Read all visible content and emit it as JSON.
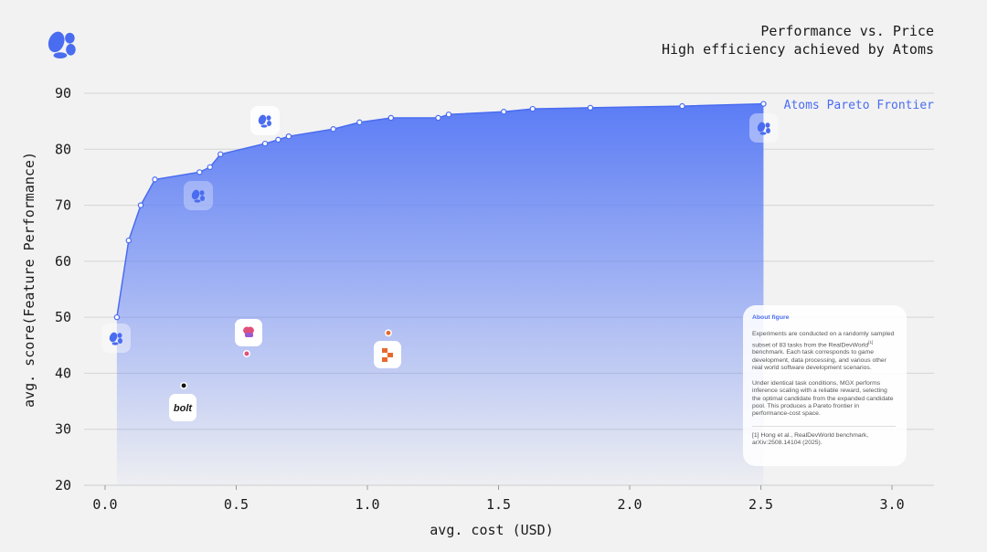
{
  "chart_data": {
    "type": "line",
    "title": "Performance vs. Price",
    "subtitle": "High efficiency achieved by Atoms",
    "x_label": "avg. cost (USD)",
    "y_label": "avg. score(Feature Performance)",
    "xlim": [
      -0.08,
      3.16
    ],
    "ylim": [
      20,
      90
    ],
    "xticks": [
      {
        "value": 0,
        "label": "0.0"
      },
      {
        "value": 0.5,
        "label": "0.5"
      },
      {
        "value": 1,
        "label": "1.0"
      },
      {
        "value": 1.5,
        "label": "1.5"
      },
      {
        "value": 2,
        "label": "2.0"
      },
      {
        "value": 2.5,
        "label": "2.5"
      },
      {
        "value": 3,
        "label": "3.0"
      }
    ],
    "yticks": [
      20,
      30,
      40,
      50,
      60,
      70,
      80,
      90
    ],
    "grid": true,
    "series": [
      {
        "name": "Atoms Pareto Frontier",
        "type": "line",
        "fill": true,
        "color": "#4a6cf0",
        "x": [
          0.045,
          0.09,
          0.136,
          0.19,
          0.36,
          0.4,
          0.44,
          0.61,
          0.66,
          0.7,
          0.87,
          0.97,
          1.09,
          1.27,
          1.31,
          1.52,
          1.63,
          1.85,
          2.2,
          2.51
        ],
        "values": [
          50,
          63.7,
          70,
          74.6,
          75.9,
          76.8,
          79.1,
          81.0,
          81.7,
          82.3,
          83.6,
          84.8,
          85.6,
          85.6,
          86.2,
          86.7,
          87.2,
          87.4,
          87.7,
          88.1
        ]
      },
      {
        "type": "scatter",
        "color": "#111111",
        "x": [
          0.3
        ],
        "values": [
          37.8
        ]
      },
      {
        "type": "scatter",
        "color": "#e0507a",
        "x": [
          0.54
        ],
        "values": [
          43.5
        ]
      },
      {
        "type": "scatter",
        "color": "#e8672c",
        "x": [
          1.08
        ],
        "values": [
          47.2
        ]
      }
    ],
    "logo_text": "bolt",
    "note": {
      "title": "About figure",
      "p1_a": "Experiments are conducted on a randomly sampled subset of 83 tasks from the RealDevWorld",
      "p1_sup": "[1]",
      "p1_b": " benchmark. Each task corresponds to game development, data processing, and various other real world software development scenarios.",
      "p2": "Under identical task conditions, MGX performs inference scaling with a reliable reward, selecting the optimal candidate from the expanded candidate pool. This produces a Pareto frontier in performance-cost space.",
      "ref": "[1] Hong et al., RealDevWorld benchmark, arXiv:2508.14104 (2025)."
    }
  }
}
